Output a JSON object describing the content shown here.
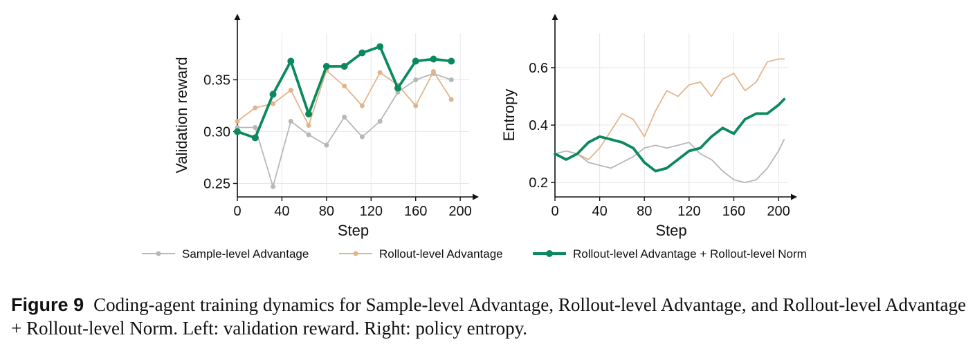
{
  "caption": {
    "label": "Figure 9",
    "text": "Coding-agent training dynamics for Sample-level Advantage, Rollout-level Advantage, and Rollout-level Advantage + Rollout-level Norm. Left: validation reward. Right: policy entropy."
  },
  "legend": [
    {
      "name": "Sample-level Advantage",
      "color": "#b7b7b7",
      "width": 2
    },
    {
      "name": "Rollout-level Advantage",
      "color": "#e3b48a",
      "width": 2
    },
    {
      "name": "Rollout-level Advantage + Rollout-level Norm",
      "color": "#0a8a5c",
      "width": 4
    }
  ],
  "chart_data": [
    {
      "type": "line",
      "xlabel": "Step",
      "ylabel": "Validation reward",
      "xlim": [
        0,
        208
      ],
      "ylim": [
        0.237,
        0.395
      ],
      "xticks": [
        0,
        40,
        80,
        120,
        160,
        200
      ],
      "yticks": [
        0.25,
        0.3,
        0.35
      ],
      "ytick_labels": [
        "0.25",
        "0.30",
        "0.35"
      ],
      "grid": true,
      "markers": true,
      "series": [
        {
          "name": "Sample-level Advantage",
          "color": "#b7b7b7",
          "x": [
            0,
            16,
            32,
            48,
            64,
            80,
            96,
            112,
            128,
            144,
            160,
            176,
            192
          ],
          "y": [
            0.304,
            0.304,
            0.247,
            0.31,
            0.297,
            0.287,
            0.314,
            0.295,
            0.31,
            0.338,
            0.35,
            0.356,
            0.35
          ]
        },
        {
          "name": "Rollout-level Advantage",
          "color": "#e3b48a",
          "x": [
            0,
            16,
            32,
            48,
            64,
            80,
            96,
            112,
            128,
            144,
            160,
            176,
            192
          ],
          "y": [
            0.31,
            0.323,
            0.327,
            0.34,
            0.306,
            0.359,
            0.344,
            0.325,
            0.357,
            0.345,
            0.325,
            0.358,
            0.331
          ]
        },
        {
          "name": "Rollout-level Advantage + Rollout-level Norm",
          "color": "#0a8a5c",
          "x": [
            0,
            16,
            32,
            48,
            64,
            80,
            96,
            112,
            128,
            144,
            160,
            176,
            192
          ],
          "y": [
            0.3,
            0.294,
            0.336,
            0.368,
            0.317,
            0.363,
            0.363,
            0.376,
            0.382,
            0.342,
            0.368,
            0.37,
            0.368
          ]
        }
      ]
    },
    {
      "type": "line",
      "xlabel": "Step",
      "ylabel": "Entropy",
      "xlim": [
        0,
        208
      ],
      "ylim": [
        0.15,
        0.72
      ],
      "xticks": [
        0,
        40,
        80,
        120,
        160,
        200
      ],
      "yticks": [
        0.2,
        0.4,
        0.6
      ],
      "ytick_labels": [
        "0.2",
        "0.4",
        "0.6"
      ],
      "grid": true,
      "markers": false,
      "series": [
        {
          "name": "Sample-level Advantage",
          "color": "#b7b7b7",
          "x": [
            0,
            10,
            20,
            30,
            40,
            50,
            60,
            70,
            80,
            90,
            100,
            110,
            120,
            130,
            140,
            150,
            160,
            170,
            180,
            190,
            200,
            205
          ],
          "y": [
            0.3,
            0.31,
            0.3,
            0.27,
            0.26,
            0.25,
            0.27,
            0.29,
            0.32,
            0.33,
            0.32,
            0.33,
            0.34,
            0.3,
            0.28,
            0.24,
            0.21,
            0.2,
            0.21,
            0.25,
            0.31,
            0.35
          ]
        },
        {
          "name": "Rollout-level Advantage",
          "color": "#e3b48a",
          "x": [
            0,
            10,
            20,
            30,
            40,
            50,
            60,
            70,
            80,
            90,
            100,
            110,
            120,
            130,
            140,
            150,
            160,
            170,
            180,
            190,
            200,
            205
          ],
          "y": [
            0.3,
            0.28,
            0.3,
            0.28,
            0.32,
            0.38,
            0.44,
            0.42,
            0.36,
            0.45,
            0.52,
            0.5,
            0.54,
            0.55,
            0.5,
            0.56,
            0.58,
            0.52,
            0.55,
            0.62,
            0.63,
            0.63
          ]
        },
        {
          "name": "Rollout-level Advantage + Rollout-level Norm",
          "color": "#0a8a5c",
          "x": [
            0,
            10,
            20,
            30,
            40,
            50,
            60,
            70,
            80,
            90,
            100,
            110,
            120,
            130,
            140,
            150,
            160,
            170,
            180,
            190,
            200,
            205
          ],
          "y": [
            0.3,
            0.28,
            0.3,
            0.34,
            0.36,
            0.35,
            0.34,
            0.32,
            0.27,
            0.24,
            0.25,
            0.28,
            0.31,
            0.32,
            0.36,
            0.39,
            0.37,
            0.42,
            0.44,
            0.44,
            0.47,
            0.49
          ]
        }
      ]
    }
  ]
}
